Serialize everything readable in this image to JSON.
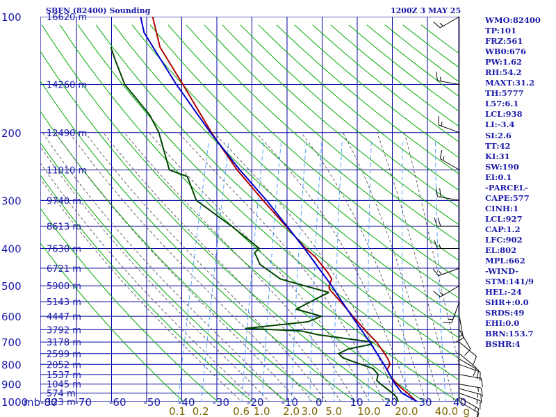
{
  "header": {
    "station": "SBFN (82400) Sounding",
    "time": "1200Z  3 MAY 25"
  },
  "stats": [
    "WMO:82400",
    "TP:101",
    "FRZ:561",
    "WB0:676",
    "PW:1.62",
    "RH:54.2",
    "MAXT:31.2",
    "TH:5777",
    "L57:6.1",
    "LCL:938",
    "LI:-3.4",
    "SI:2.6",
    "TT:42",
    "KI:31",
    "SW:190",
    "EI:0.1",
    "-PARCEL-",
    "CAPE:577",
    "CINH:1",
    "LCL:927",
    "CAP:1.2",
    "LFC:902",
    "EL:802",
    "MPL:662",
    "-WIND-",
    "STM:141/9",
    "HEL:-24",
    "SHR+:0.0",
    "SRDS:49",
    "EHI:0.0",
    "BRN:153.7",
    "BSHR:4"
  ],
  "colors": {
    "grid": "#0000a0",
    "dry_adiabat": "#00aa00",
    "moist_adiabat": "#555555",
    "mixing_ratio": "#4499ff",
    "temperature": "#b00000",
    "dewpoint": "#004400",
    "parcel": "#0000cc",
    "wind_barb": "#000000",
    "label": "#1a1aa8",
    "mixing_label": "#806600"
  },
  "chart_data": {
    "type": "line",
    "diagram": "skew-T log-P",
    "y_axis_unit": "mb",
    "ylim": [
      1000,
      100
    ],
    "xlim": [
      -80,
      50
    ],
    "x_ticks": [
      -80,
      -70,
      -60,
      -50,
      -40,
      -30,
      -20,
      -10,
      0,
      10,
      20,
      30,
      40
    ],
    "x_tick_labels": [
      "-80",
      "-70",
      "-60",
      "-50",
      "-40",
      "-30",
      "-20",
      "-10",
      "0",
      "10",
      "20",
      "30",
      "40"
    ],
    "pressure_ticks": [
      {
        "p": 100,
        "label": "100"
      },
      {
        "p": 200,
        "label": "200"
      },
      {
        "p": 300,
        "label": "300"
      },
      {
        "p": 400,
        "label": "400"
      },
      {
        "p": 500,
        "label": "500"
      },
      {
        "p": 600,
        "label": "600"
      },
      {
        "p": 700,
        "label": "700"
      },
      {
        "p": 800,
        "label": "800"
      },
      {
        "p": 900,
        "label": "900"
      },
      {
        "p": 1000,
        "label": "1000"
      }
    ],
    "height_labels": [
      {
        "p": 100,
        "label": "16620 m"
      },
      {
        "p": 150,
        "label": "14260 m"
      },
      {
        "p": 200,
        "label": "12490 m"
      },
      {
        "p": 250,
        "label": "11010 m"
      },
      {
        "p": 300,
        "label": "9740 m"
      },
      {
        "p": 350,
        "label": "8613 m"
      },
      {
        "p": 400,
        "label": "7630 m"
      },
      {
        "p": 450,
        "label": "6721 m"
      },
      {
        "p": 500,
        "label": "5900 m"
      },
      {
        "p": 550,
        "label": "5143 m"
      },
      {
        "p": 600,
        "label": "4447 m"
      },
      {
        "p": 650,
        "label": "3792 m"
      },
      {
        "p": 700,
        "label": "3178 m"
      },
      {
        "p": 750,
        "label": "2599 m"
      },
      {
        "p": 800,
        "label": "2052 m"
      },
      {
        "p": 850,
        "label": "1537 m"
      },
      {
        "p": 900,
        "label": "1045 m"
      },
      {
        "p": 950,
        "label": "574 m"
      },
      {
        "p": 1000,
        "label": "123 m"
      }
    ],
    "mixing_ratio_labels": [
      {
        "w": 0.1,
        "label": "0.1"
      },
      {
        "w": 0.2,
        "label": "0.2"
      },
      {
        "w": 0.6,
        "label": "0.6"
      },
      {
        "w": 1.0,
        "label": "1.0"
      },
      {
        "w": 2.0,
        "label": "2.0"
      },
      {
        "w": 3.0,
        "label": "3.0"
      },
      {
        "w": 5.0,
        "label": "5.0"
      },
      {
        "w": 10.0,
        "label": "10.0"
      },
      {
        "w": 20.0,
        "label": "20.0"
      },
      {
        "w": 40.0,
        "label": "40.0"
      }
    ],
    "mixing_ratio_unit": "g",
    "series": [
      {
        "key": "temperature",
        "points": [
          [
            1000,
            27.8
          ],
          [
            950,
            24.4
          ],
          [
            900,
            20.5
          ],
          [
            850,
            17.5
          ],
          [
            825,
            16.4
          ],
          [
            800,
            16.8
          ],
          [
            780,
            16.0
          ],
          [
            750,
            14.3
          ],
          [
            700,
            10.9
          ],
          [
            650,
            6.4
          ],
          [
            600,
            1.8
          ],
          [
            550,
            -3.0
          ],
          [
            510,
            -7.4
          ],
          [
            500,
            -7.8
          ],
          [
            480,
            -7.6
          ],
          [
            460,
            -9.5
          ],
          [
            420,
            -14.4
          ],
          [
            400,
            -17.8
          ],
          [
            350,
            -25.5
          ],
          [
            300,
            -34.4
          ],
          [
            250,
            -44.6
          ],
          [
            200,
            -55.3
          ],
          [
            150,
            -67.8
          ],
          [
            120,
            -77.7
          ],
          [
            100,
            -82.5
          ]
        ]
      },
      {
        "key": "dewpoint",
        "points": [
          [
            1000,
            22.4
          ],
          [
            975,
            21.6
          ],
          [
            950,
            20.0
          ],
          [
            900,
            15.8
          ],
          [
            880,
            14.3
          ],
          [
            850,
            14.2
          ],
          [
            820,
            12.2
          ],
          [
            770,
            2.6
          ],
          [
            750,
            0.9
          ],
          [
            730,
            3.2
          ],
          [
            710,
            9.4
          ],
          [
            700,
            9.6
          ],
          [
            670,
            -6.7
          ],
          [
            655,
            -12.0
          ],
          [
            645,
            -28.3
          ],
          [
            620,
            -10.8
          ],
          [
            600,
            -7.3
          ],
          [
            575,
            -15.3
          ],
          [
            520,
            -7.3
          ],
          [
            500,
            -14.9
          ],
          [
            480,
            -22.5
          ],
          [
            440,
            -29.7
          ],
          [
            410,
            -32.3
          ],
          [
            400,
            -31.3
          ],
          [
            350,
            -41.3
          ],
          [
            300,
            -53.8
          ],
          [
            260,
            -58.5
          ],
          [
            250,
            -64.3
          ],
          [
            200,
            -70.6
          ],
          [
            180,
            -74.8
          ],
          [
            150,
            -84.7
          ],
          [
            130,
            -89.5
          ],
          [
            120,
            -92.0
          ]
        ]
      },
      {
        "key": "parcel",
        "points": [
          [
            1000,
            28.0
          ],
          [
            950,
            22.8
          ],
          [
            900,
            20.0
          ],
          [
            850,
            17.6
          ],
          [
            800,
            15.0
          ],
          [
            750,
            12.1
          ],
          [
            700,
            8.9
          ],
          [
            650,
            5.4
          ],
          [
            600,
            1.5
          ],
          [
            550,
            -2.6
          ],
          [
            500,
            -7.0
          ],
          [
            450,
            -12.3
          ],
          [
            400,
            -18.2
          ],
          [
            350,
            -25.2
          ],
          [
            300,
            -33.4
          ],
          [
            250,
            -43.8
          ],
          [
            200,
            -55.6
          ],
          [
            150,
            -69.7
          ],
          [
            125,
            -77.9
          ],
          [
            110,
            -83.6
          ],
          [
            100,
            -86.0
          ]
        ]
      }
    ],
    "wind_barbs": [
      {
        "p": 1000,
        "dir": 120,
        "spd": 10
      },
      {
        "p": 975,
        "dir": 120,
        "spd": 15
      },
      {
        "p": 950,
        "dir": 110,
        "spd": 15
      },
      {
        "p": 925,
        "dir": 105,
        "spd": 15
      },
      {
        "p": 900,
        "dir": 100,
        "spd": 15
      },
      {
        "p": 850,
        "dir": 100,
        "spd": 10
      },
      {
        "p": 800,
        "dir": 110,
        "spd": 10
      },
      {
        "p": 775,
        "dir": 120,
        "spd": 10
      },
      {
        "p": 750,
        "dir": 130,
        "spd": 10
      },
      {
        "p": 700,
        "dir": 130,
        "spd": 10
      },
      {
        "p": 650,
        "dir": 150,
        "spd": 10
      },
      {
        "p": 600,
        "dir": 170,
        "spd": 15
      },
      {
        "p": 550,
        "dir": 200,
        "spd": 15
      },
      {
        "p": 500,
        "dir": 240,
        "spd": 15
      },
      {
        "p": 450,
        "dir": 250,
        "spd": 15
      },
      {
        "p": 400,
        "dir": 270,
        "spd": 15
      },
      {
        "p": 350,
        "dir": 270,
        "spd": 20
      },
      {
        "p": 300,
        "dir": 280,
        "spd": 20
      },
      {
        "p": 250,
        "dir": 300,
        "spd": 15
      },
      {
        "p": 200,
        "dir": 290,
        "spd": 15
      },
      {
        "p": 150,
        "dir": 280,
        "spd": 15
      },
      {
        "p": 100,
        "dir": 240,
        "spd": 15
      }
    ]
  }
}
